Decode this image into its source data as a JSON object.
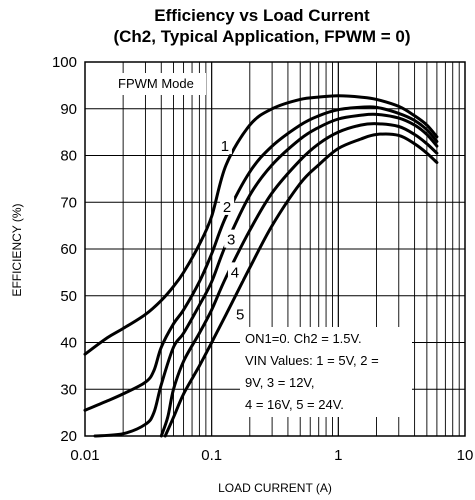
{
  "chart_data": {
    "type": "line",
    "title_line1": "Efficiency vs Load Current",
    "title_line2": "(Ch2, Typical Application, FPWM = 0)",
    "xlabel": "LOAD CURRENT (A)",
    "ylabel": "EFFICIENCY (%)",
    "xscale": "log",
    "xlim": [
      0.01,
      10
    ],
    "ylim": [
      20,
      100
    ],
    "grid": true,
    "x_ticks": [
      {
        "value": 0.01,
        "label": "0.01"
      },
      {
        "value": 0.1,
        "label": "0.1"
      },
      {
        "value": 1,
        "label": "1"
      },
      {
        "value": 10,
        "label": "10"
      }
    ],
    "y_ticks": [
      {
        "value": 20,
        "label": "20"
      },
      {
        "value": 30,
        "label": "30"
      },
      {
        "value": 40,
        "label": "40"
      },
      {
        "value": 50,
        "label": "50"
      },
      {
        "value": 60,
        "label": "60"
      },
      {
        "value": 70,
        "label": "70"
      },
      {
        "value": 80,
        "label": "80"
      },
      {
        "value": 90,
        "label": "90"
      },
      {
        "value": 100,
        "label": "100"
      }
    ],
    "mode_label": "FPWM Mode",
    "note_lines": [
      "ON1=0. Ch2 = 1.5V.",
      "VIN Values: 1 = 5V,  2 =",
      "9V, 3 = 12V,",
      "4 = 16V, 5 = 24V."
    ],
    "series": [
      {
        "name": "1",
        "label_at": [
          0.125,
          82
        ],
        "x": [
          0.01,
          0.015,
          0.02,
          0.03,
          0.04,
          0.05,
          0.06,
          0.08,
          0.1,
          0.13,
          0.2,
          0.3,
          0.5,
          0.7,
          1.0,
          1.5,
          2.0,
          3.0,
          4.0,
          5.0,
          6.0
        ],
        "y": [
          37.5,
          41,
          43,
          46,
          49,
          52,
          55,
          61,
          67,
          78,
          86.5,
          90,
          92,
          92.5,
          92.8,
          92.5,
          92,
          90.5,
          88.5,
          86.5,
          84
        ]
      },
      {
        "name": "2",
        "label_at": [
          0.13,
          69
        ],
        "x": [
          0.01,
          0.015,
          0.02,
          0.03,
          0.035,
          0.04,
          0.05,
          0.06,
          0.08,
          0.1,
          0.13,
          0.2,
          0.3,
          0.5,
          0.7,
          1.0,
          1.5,
          2.0,
          3.0,
          4.0,
          5.0,
          6.0
        ],
        "y": [
          25.5,
          27.5,
          29,
          31.5,
          34,
          39,
          44,
          47,
          53,
          59,
          67,
          76.5,
          82,
          86.5,
          88.5,
          89.8,
          90.3,
          90.3,
          89,
          87.5,
          85.5,
          83
        ]
      },
      {
        "name": "3",
        "label_at": [
          0.14,
          62
        ],
        "x": [
          0.012,
          0.02,
          0.03,
          0.035,
          0.04,
          0.05,
          0.06,
          0.08,
          0.1,
          0.13,
          0.2,
          0.3,
          0.5,
          0.7,
          1.0,
          1.5,
          2.0,
          3.0,
          4.0,
          5.0,
          6.0
        ],
        "y": [
          20,
          20.5,
          22.5,
          25,
          31,
          39,
          42,
          48,
          53,
          61,
          71.5,
          78,
          83.5,
          86,
          87.8,
          88.6,
          88.8,
          88,
          86.5,
          84.5,
          82
        ]
      },
      {
        "name": "4",
        "label_at": [
          0.15,
          55
        ],
        "x": [
          0.04,
          0.045,
          0.05,
          0.06,
          0.08,
          0.1,
          0.13,
          0.2,
          0.3,
          0.5,
          0.7,
          1.0,
          1.5,
          2.0,
          3.0,
          4.0,
          5.0,
          6.0
        ],
        "y": [
          20,
          24,
          30,
          36,
          42,
          47,
          54,
          64,
          72,
          79,
          82.5,
          85,
          86.5,
          86.8,
          86.2,
          84.5,
          82.5,
          80.5
        ]
      },
      {
        "name": "5",
        "label_at": [
          0.165,
          46
        ],
        "x": [
          0.043,
          0.05,
          0.06,
          0.08,
          0.1,
          0.13,
          0.2,
          0.3,
          0.5,
          0.7,
          1.0,
          1.5,
          2.0,
          3.0,
          4.0,
          5.0,
          6.0
        ],
        "y": [
          20,
          24,
          29,
          35,
          40,
          46,
          56,
          65,
          74,
          78,
          81.5,
          83.5,
          84.5,
          84.3,
          82.5,
          80.5,
          78.5
        ]
      }
    ]
  }
}
